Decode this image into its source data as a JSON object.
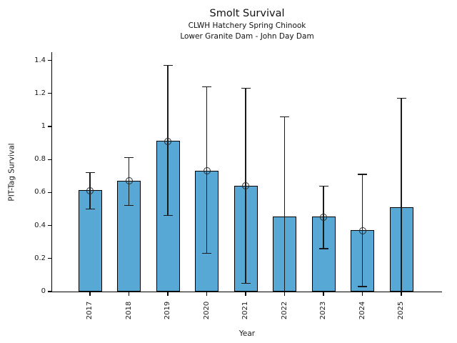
{
  "chart_data": {
    "type": "bar",
    "title": "Smolt Survival",
    "subtitle1": "CLWH Hatchery Spring Chinook",
    "subtitle2": "Lower Granite Dam - John Day Dam",
    "xlabel": "Year",
    "ylabel": "PIT-Tag Survival",
    "categories": [
      "2017",
      "2018",
      "2019",
      "2020",
      "2021",
      "2022",
      "2023",
      "2024",
      "2025"
    ],
    "values": [
      0.61,
      0.67,
      0.91,
      0.73,
      0.64,
      0.45,
      0.45,
      0.37,
      0.51
    ],
    "error_upper": [
      0.72,
      0.81,
      1.37,
      1.24,
      1.23,
      1.06,
      0.64,
      0.71,
      1.17
    ],
    "error_lower": [
      0.5,
      0.52,
      0.46,
      0.23,
      0.05,
      0.0,
      0.26,
      0.03,
      0.0
    ],
    "point_markers": [
      true,
      true,
      true,
      true,
      true,
      false,
      true,
      true,
      false
    ],
    "ytick_values": [
      0,
      0.2,
      0.4,
      0.6,
      0.8,
      1.0,
      1.2,
      1.4
    ],
    "ytick_labels": [
      "0",
      "0.2",
      "0.4",
      "0.6",
      "0.8",
      "1",
      "1.2",
      "1.4"
    ],
    "ylim": [
      0,
      1.45
    ],
    "grid": false,
    "legend": "none",
    "bar_color": "#57a8d5",
    "bar_edge_color": "#000000",
    "error_color": "#1a1a1a",
    "marker_edge_color": "#2b2b2b",
    "background_color": "#ffffff"
  }
}
